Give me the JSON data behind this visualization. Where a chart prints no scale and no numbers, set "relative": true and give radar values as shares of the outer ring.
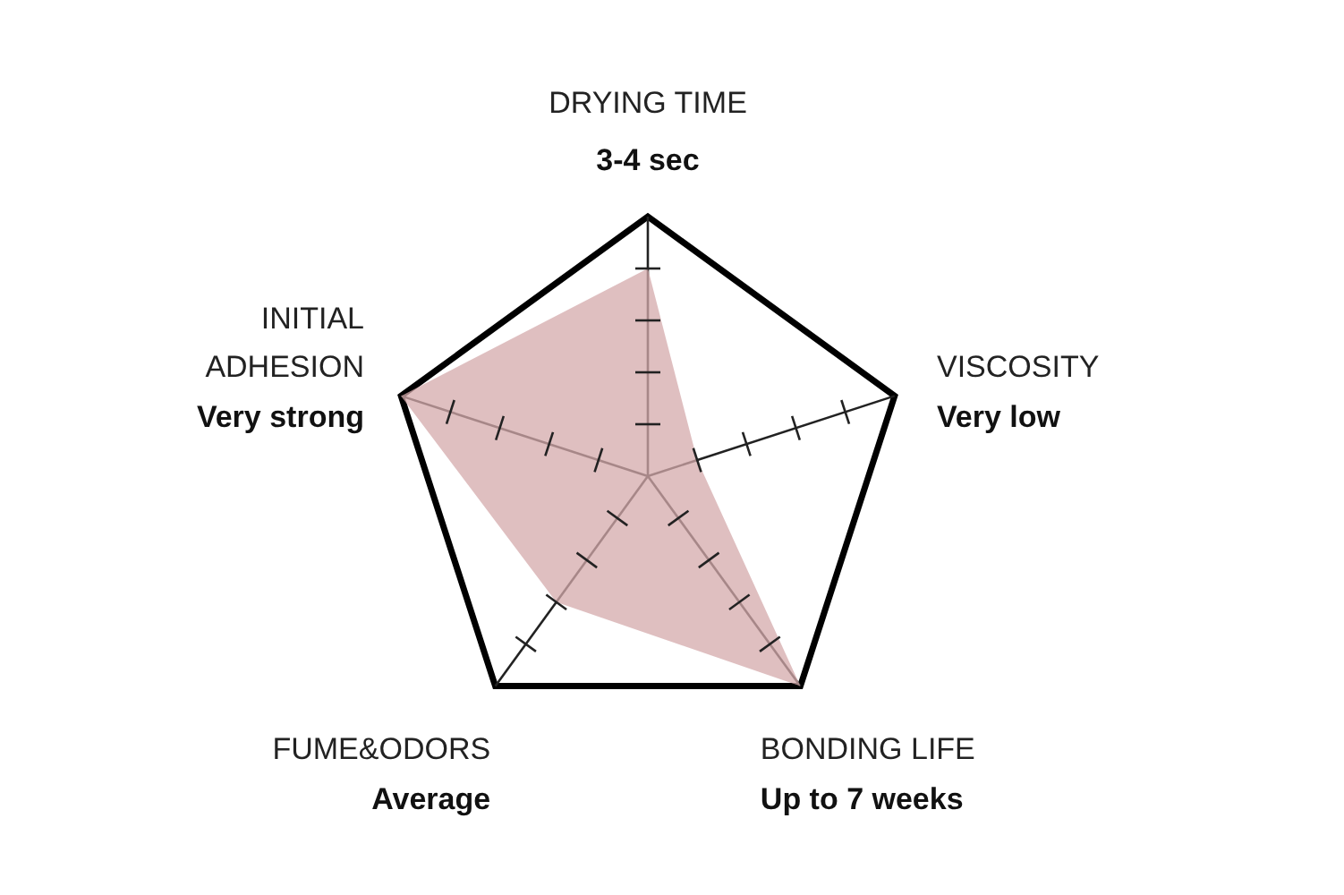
{
  "chart_data": {
    "type": "radar",
    "relative": true,
    "grid": true,
    "categories": [
      "DRYING TIME",
      "VISCOSITY",
      "BONDING LIFE",
      "FUME&ODORS",
      "INITIAL ADHESION"
    ],
    "annotations": [
      "3-4 sec",
      "Very low",
      "Up to 7 weeks",
      "Average",
      "Very strong"
    ],
    "series": [
      {
        "color": "#d4a9ab",
        "values": [
          0.8,
          0.2,
          1,
          0.6,
          1
        ]
      }
    ]
  }
}
